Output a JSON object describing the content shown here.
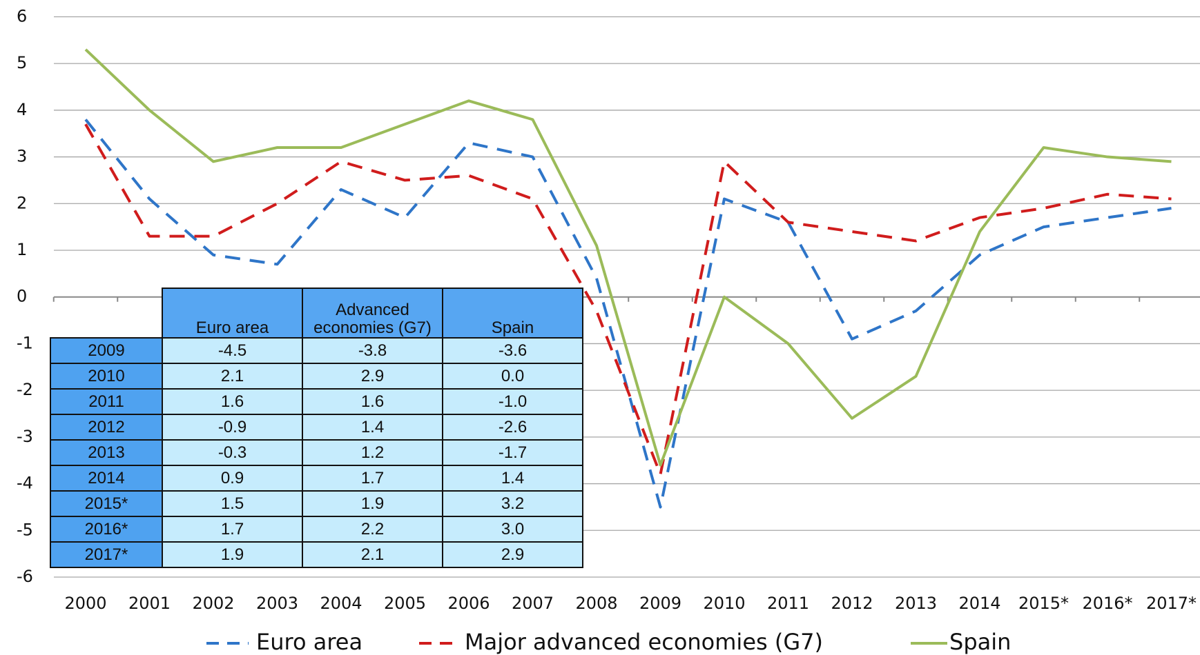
{
  "chart_data": {
    "type": "line",
    "categories": [
      "2000",
      "2001",
      "2002",
      "2003",
      "2004",
      "2005",
      "2006",
      "2007",
      "2008",
      "2009",
      "2010",
      "2011",
      "2012",
      "2013",
      "2014",
      "2015*",
      "2016*",
      "2017*"
    ],
    "series": [
      {
        "name": "Euro area",
        "color": "#2e75c8",
        "dash": true,
        "values": [
          3.8,
          2.1,
          0.9,
          0.7,
          2.3,
          1.7,
          3.3,
          3.0,
          0.4,
          -4.5,
          2.1,
          1.6,
          -0.9,
          -0.3,
          0.9,
          1.5,
          1.7,
          1.9
        ]
      },
      {
        "name": "Major advanced economies (G7)",
        "color": "#d01c1c",
        "dash": true,
        "values": [
          3.7,
          1.3,
          1.3,
          2.0,
          2.9,
          2.5,
          2.6,
          2.1,
          -0.3,
          -3.8,
          2.9,
          1.6,
          1.4,
          1.2,
          1.7,
          1.9,
          2.2,
          2.1
        ]
      },
      {
        "name": "Spain",
        "color": "#9bbb59",
        "dash": false,
        "values": [
          5.3,
          4.0,
          2.9,
          3.2,
          3.2,
          3.7,
          4.2,
          3.8,
          1.1,
          -3.6,
          0.0,
          -1.0,
          -2.6,
          -1.7,
          1.4,
          3.2,
          3.0,
          2.9
        ]
      }
    ],
    "ylim": [
      -6,
      6
    ],
    "yticks": [
      -6,
      -5,
      -4,
      -3,
      -2,
      -1,
      0,
      1,
      2,
      3,
      4,
      5,
      6
    ],
    "grid": true,
    "legend": "bottom",
    "table": {
      "columns": [
        "Euro area",
        "Advanced economies (G7)",
        "Spain"
      ],
      "rows": [
        [
          "2009",
          "-4.5",
          "-3.8",
          "-3.6"
        ],
        [
          "2010",
          "2.1",
          "2.9",
          "0.0"
        ],
        [
          "2011",
          "1.6",
          "1.6",
          "-1.0"
        ],
        [
          "2012",
          "-0.9",
          "1.4",
          "-2.6"
        ],
        [
          "2013",
          "-0.3",
          "1.2",
          "-1.7"
        ],
        [
          "2014",
          "0.9",
          "1.7",
          "1.4"
        ],
        [
          "2015*",
          "1.5",
          "1.9",
          "3.2"
        ],
        [
          "2016*",
          "1.7",
          "2.2",
          "3.0"
        ],
        [
          "2017*",
          "1.9",
          "2.1",
          "2.9"
        ]
      ]
    }
  }
}
